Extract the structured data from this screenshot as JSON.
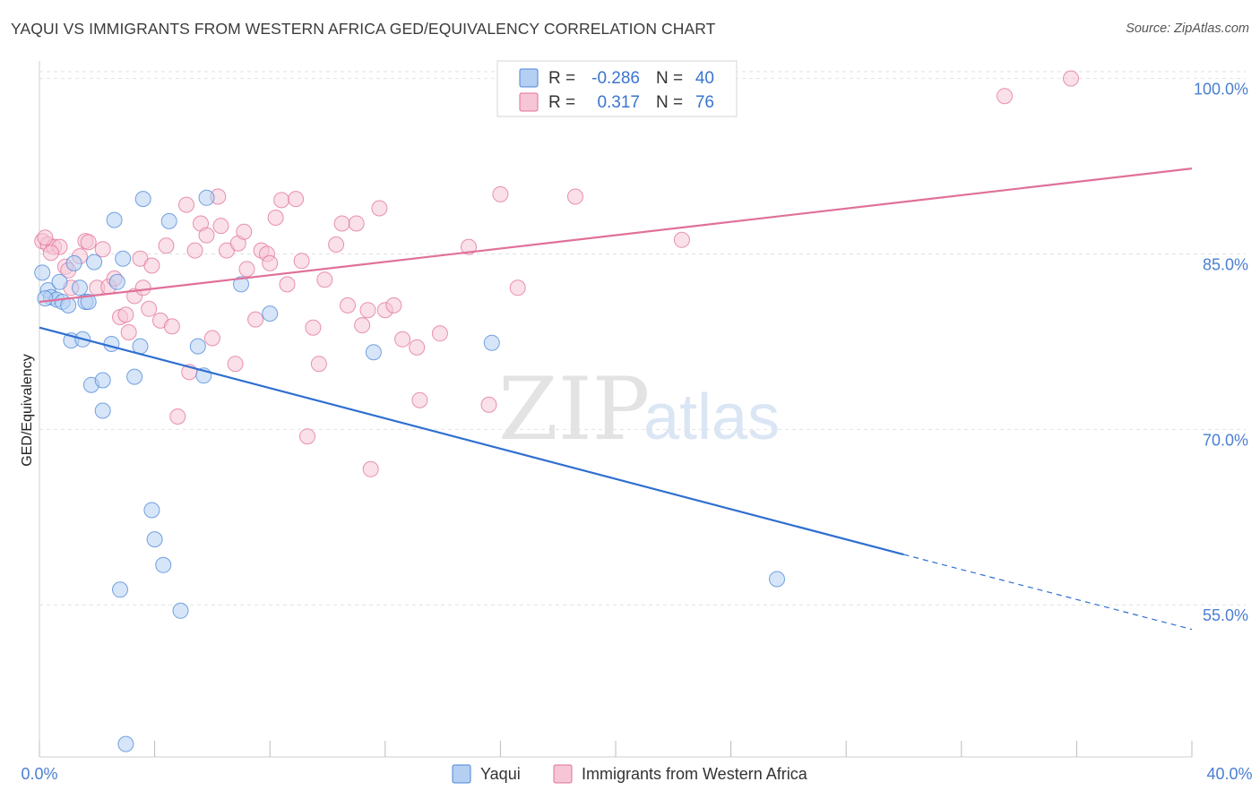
{
  "title": "YAQUI VS IMMIGRANTS FROM WESTERN AFRICA GED/EQUIVALENCY CORRELATION CHART",
  "source": "Source: ZipAtlas.com",
  "colors": {
    "blue": "#4a86d8",
    "blue_fill": "#b5cff2",
    "pink": "#e07097",
    "pink_fill": "#f6c6d6",
    "grid": "#e2e2e2",
    "axis_label": "#4a7fd0"
  },
  "legend": {
    "r_label": "R =",
    "n_label": "N =",
    "rows": [
      {
        "series": "Yaqui",
        "r": "-0.286",
        "n": "40"
      },
      {
        "series": "Immigrants from Western Africa",
        "r": "0.317",
        "n": "76"
      }
    ]
  },
  "watermark": {
    "zip": "ZIP",
    "atlas": "atlas"
  },
  "chart_data": {
    "type": "scatter",
    "title": "YAQUI VS IMMIGRANTS FROM WESTERN AFRICA GED/EQUIVALENCY CORRELATION CHART",
    "xlabel": "",
    "ylabel": "GED/Equivalency",
    "xlim": [
      0,
      40
    ],
    "ylim": [
      42,
      101.5
    ],
    "x_tick_labels": [
      "0.0%",
      "40.0%"
    ],
    "y_ticks": [
      55,
      70,
      85,
      100
    ],
    "y_tick_labels": [
      "55.0%",
      "70.0%",
      "85.0%",
      "100.0%"
    ],
    "series": [
      {
        "name": "Yaqui",
        "color": "#4a86d8",
        "trend": {
          "x0": 0,
          "y0": 78.7,
          "x1": 30,
          "y1": 59.3,
          "dash_to_x": 40,
          "dash_to_y": 52.9
        },
        "points": [
          [
            0.1,
            83.4
          ],
          [
            0.3,
            81.9
          ],
          [
            0.4,
            81.3
          ],
          [
            0.6,
            81.1
          ],
          [
            0.7,
            82.6
          ],
          [
            0.8,
            80.9
          ],
          [
            1.0,
            80.6
          ],
          [
            1.1,
            77.6
          ],
          [
            1.2,
            84.2
          ],
          [
            1.4,
            82.1
          ],
          [
            1.5,
            77.7
          ],
          [
            1.6,
            80.9
          ],
          [
            1.8,
            73.8
          ],
          [
            1.9,
            84.3
          ],
          [
            2.2,
            74.2
          ],
          [
            2.2,
            71.6
          ],
          [
            2.5,
            77.3
          ],
          [
            2.6,
            87.9
          ],
          [
            2.7,
            82.6
          ],
          [
            2.8,
            56.3
          ],
          [
            2.9,
            84.6
          ],
          [
            3.0,
            43.1
          ],
          [
            3.3,
            74.5
          ],
          [
            3.5,
            77.1
          ],
          [
            3.6,
            89.7
          ],
          [
            3.9,
            63.1
          ],
          [
            4.0,
            60.6
          ],
          [
            4.3,
            58.4
          ],
          [
            4.5,
            87.8
          ],
          [
            4.9,
            54.5
          ],
          [
            5.5,
            77.1
          ],
          [
            5.7,
            74.6
          ],
          [
            5.8,
            89.8
          ],
          [
            7.0,
            82.4
          ],
          [
            8.0,
            79.9
          ],
          [
            11.6,
            76.6
          ],
          [
            15.7,
            77.4
          ],
          [
            25.6,
            57.2
          ],
          [
            0.2,
            81.2
          ],
          [
            1.7,
            80.9
          ]
        ]
      },
      {
        "name": "Immigrants from Western Africa",
        "color": "#e07097",
        "trend": {
          "x0": 0,
          "y0": 80.9,
          "x1": 40,
          "y1": 92.3
        },
        "points": [
          [
            0.1,
            86.1
          ],
          [
            0.3,
            85.8
          ],
          [
            0.5,
            85.6
          ],
          [
            0.7,
            85.6
          ],
          [
            0.9,
            83.9
          ],
          [
            1.1,
            82.1
          ],
          [
            1.4,
            84.8
          ],
          [
            1.6,
            86.1
          ],
          [
            1.7,
            86.0
          ],
          [
            2.0,
            82.1
          ],
          [
            2.2,
            85.4
          ],
          [
            2.4,
            82.2
          ],
          [
            2.6,
            82.9
          ],
          [
            2.8,
            79.6
          ],
          [
            3.0,
            79.8
          ],
          [
            3.1,
            78.3
          ],
          [
            3.3,
            81.4
          ],
          [
            3.5,
            84.6
          ],
          [
            3.6,
            82.1
          ],
          [
            3.8,
            80.3
          ],
          [
            3.9,
            84.0
          ],
          [
            4.2,
            79.3
          ],
          [
            4.4,
            85.7
          ],
          [
            4.6,
            78.8
          ],
          [
            4.8,
            71.1
          ],
          [
            5.1,
            89.2
          ],
          [
            5.2,
            74.9
          ],
          [
            5.4,
            85.3
          ],
          [
            5.6,
            87.6
          ],
          [
            5.8,
            86.6
          ],
          [
            6.0,
            77.8
          ],
          [
            6.2,
            89.9
          ],
          [
            6.3,
            87.4
          ],
          [
            6.5,
            85.3
          ],
          [
            6.8,
            75.6
          ],
          [
            6.9,
            85.9
          ],
          [
            7.1,
            86.9
          ],
          [
            7.2,
            83.7
          ],
          [
            7.5,
            79.4
          ],
          [
            7.7,
            85.3
          ],
          [
            7.9,
            85.0
          ],
          [
            8.0,
            84.2
          ],
          [
            8.2,
            88.1
          ],
          [
            8.4,
            89.6
          ],
          [
            8.6,
            82.4
          ],
          [
            8.9,
            89.7
          ],
          [
            9.1,
            84.4
          ],
          [
            9.3,
            69.4
          ],
          [
            9.5,
            78.7
          ],
          [
            9.7,
            75.6
          ],
          [
            9.9,
            82.8
          ],
          [
            10.3,
            85.8
          ],
          [
            10.5,
            87.6
          ],
          [
            10.7,
            80.6
          ],
          [
            11.0,
            87.6
          ],
          [
            11.2,
            78.9
          ],
          [
            11.4,
            80.2
          ],
          [
            11.5,
            66.6
          ],
          [
            11.8,
            88.9
          ],
          [
            12.0,
            80.2
          ],
          [
            12.3,
            80.6
          ],
          [
            12.6,
            77.7
          ],
          [
            13.1,
            77.0
          ],
          [
            13.2,
            72.5
          ],
          [
            13.9,
            78.2
          ],
          [
            14.9,
            85.6
          ],
          [
            15.6,
            72.1
          ],
          [
            16.0,
            90.1
          ],
          [
            16.6,
            82.1
          ],
          [
            18.6,
            89.9
          ],
          [
            22.3,
            86.2
          ],
          [
            33.5,
            98.5
          ],
          [
            35.8,
            100.0
          ],
          [
            0.2,
            86.4
          ],
          [
            0.4,
            85.1
          ],
          [
            1.0,
            83.6
          ]
        ]
      }
    ]
  }
}
